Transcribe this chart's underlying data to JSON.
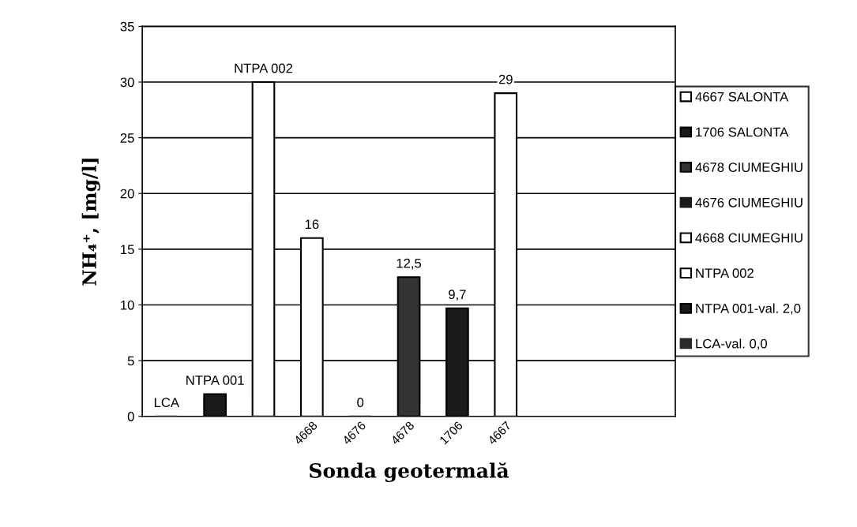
{
  "chart_data": {
    "type": "bar",
    "xlabel": "Sonda geotermală",
    "ylabel": "NH₄⁺, [mg/l]",
    "categories": [
      null,
      null,
      null,
      "4668",
      "4676",
      "4678",
      "1706",
      "4667",
      null,
      null,
      null
    ],
    "series": [
      {
        "name": "LCA-val. 0,0",
        "color": "#2a2a2a",
        "values": [
          0,
          null,
          null,
          null,
          null,
          null,
          null,
          null,
          null,
          null,
          null
        ],
        "value_labels": [
          "LCA",
          null,
          null,
          null,
          null,
          null,
          null,
          null,
          null,
          null,
          null
        ]
      },
      {
        "name": "NTPA 001-val. 2,0",
        "color": "#1a1a1a",
        "values": [
          null,
          2,
          null,
          null,
          null,
          null,
          null,
          null,
          null,
          null,
          null
        ],
        "value_labels": [
          null,
          "NTPA 001",
          null,
          null,
          null,
          null,
          null,
          null,
          null,
          null,
          null
        ]
      },
      {
        "name": "NTPA 002",
        "color": "#ffffff",
        "values": [
          null,
          null,
          30,
          null,
          null,
          null,
          null,
          null,
          null,
          null,
          null
        ],
        "value_labels": [
          null,
          null,
          "NTPA 002",
          null,
          null,
          null,
          null,
          null,
          null,
          null,
          null
        ]
      },
      {
        "name": "4668 CIUMEGHIU",
        "color": "#ffffff",
        "values": [
          null,
          null,
          null,
          16,
          null,
          null,
          null,
          null,
          null,
          null,
          null
        ],
        "value_labels": [
          null,
          null,
          null,
          "16",
          null,
          null,
          null,
          null,
          null,
          null,
          null
        ]
      },
      {
        "name": "4676 CIUMEGHIU",
        "color": "#1a1a1a",
        "values": [
          null,
          null,
          null,
          null,
          0,
          null,
          null,
          null,
          null,
          null,
          null
        ],
        "value_labels": [
          null,
          null,
          null,
          null,
          "0",
          null,
          null,
          null,
          null,
          null,
          null
        ]
      },
      {
        "name": "4678 CIUMEGHIU",
        "color": "#333333",
        "values": [
          null,
          null,
          null,
          null,
          null,
          12.5,
          null,
          null,
          null,
          null,
          null
        ],
        "value_labels": [
          null,
          null,
          null,
          null,
          null,
          "12,5",
          null,
          null,
          null,
          null,
          null
        ]
      },
      {
        "name": "1706 SALONTA",
        "color": "#1a1a1a",
        "values": [
          null,
          null,
          null,
          null,
          null,
          null,
          9.7,
          null,
          null,
          null,
          null
        ],
        "value_labels": [
          null,
          null,
          null,
          null,
          null,
          null,
          "9,7",
          null,
          null,
          null,
          null
        ]
      },
      {
        "name": "4667 SALONTA",
        "color": "#ffffff",
        "values": [
          null,
          null,
          null,
          null,
          null,
          null,
          null,
          29,
          null,
          null,
          null
        ],
        "value_labels": [
          null,
          null,
          null,
          null,
          null,
          null,
          null,
          "29",
          null,
          null,
          null
        ]
      }
    ],
    "ylim": [
      0,
      35
    ],
    "yticks": [
      0,
      5,
      10,
      15,
      20,
      25,
      30,
      35
    ],
    "grid": "y",
    "legend": "right"
  }
}
